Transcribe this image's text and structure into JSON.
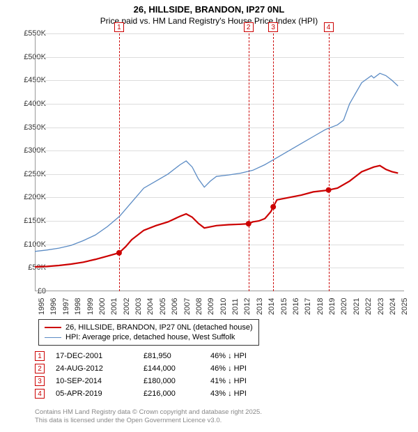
{
  "title": "26, HILLSIDE, BRANDON, IP27 0NL",
  "subtitle": "Price paid vs. HM Land Registry's House Price Index (HPI)",
  "chart": {
    "type": "line",
    "ylim": [
      0,
      550000
    ],
    "ytick_step": 50000,
    "yticks": [
      "£0",
      "£50K",
      "£100K",
      "£150K",
      "£200K",
      "£250K",
      "£300K",
      "£350K",
      "£400K",
      "£450K",
      "£500K",
      "£550K"
    ],
    "xlim": [
      1995,
      2025.5
    ],
    "xticks": [
      1995,
      1996,
      1997,
      1998,
      1999,
      2000,
      2001,
      2002,
      2003,
      2004,
      2005,
      2006,
      2007,
      2008,
      2009,
      2010,
      2011,
      2012,
      2013,
      2014,
      2015,
      2016,
      2017,
      2018,
      2019,
      2020,
      2021,
      2022,
      2023,
      2024,
      2025
    ],
    "grid_color": "#dddddd",
    "series": [
      {
        "name": "26, HILLSIDE, BRANDON, IP27 0NL (detached house)",
        "color": "#cc0000",
        "width": 2.2,
        "data": [
          [
            1995,
            52000
          ],
          [
            1996,
            53000
          ],
          [
            1997,
            55000
          ],
          [
            1998,
            58000
          ],
          [
            1999,
            62000
          ],
          [
            2000,
            68000
          ],
          [
            2001,
            75000
          ],
          [
            2001.96,
            81950
          ],
          [
            2002.5,
            95000
          ],
          [
            2003,
            110000
          ],
          [
            2004,
            130000
          ],
          [
            2005,
            140000
          ],
          [
            2006,
            148000
          ],
          [
            2007,
            160000
          ],
          [
            2007.5,
            165000
          ],
          [
            2008,
            158000
          ],
          [
            2008.5,
            145000
          ],
          [
            2009,
            135000
          ],
          [
            2010,
            140000
          ],
          [
            2011,
            142000
          ],
          [
            2012,
            143000
          ],
          [
            2012.65,
            144000
          ],
          [
            2013,
            148000
          ],
          [
            2013.5,
            150000
          ],
          [
            2014,
            155000
          ],
          [
            2014.5,
            170000
          ],
          [
            2014.69,
            180000
          ],
          [
            2015,
            195000
          ],
          [
            2016,
            200000
          ],
          [
            2017,
            205000
          ],
          [
            2018,
            212000
          ],
          [
            2019,
            215000
          ],
          [
            2019.26,
            216000
          ],
          [
            2020,
            220000
          ],
          [
            2021,
            235000
          ],
          [
            2022,
            255000
          ],
          [
            2023,
            265000
          ],
          [
            2023.5,
            268000
          ],
          [
            2024,
            260000
          ],
          [
            2024.5,
            255000
          ],
          [
            2025,
            252000
          ]
        ]
      },
      {
        "name": "HPI: Average price, detached house, West Suffolk",
        "color": "#5b8bc4",
        "width": 1.3,
        "data": [
          [
            1995,
            85000
          ],
          [
            1996,
            88000
          ],
          [
            1997,
            92000
          ],
          [
            1998,
            98000
          ],
          [
            1999,
            108000
          ],
          [
            2000,
            120000
          ],
          [
            2001,
            138000
          ],
          [
            2002,
            160000
          ],
          [
            2003,
            190000
          ],
          [
            2004,
            220000
          ],
          [
            2005,
            235000
          ],
          [
            2006,
            250000
          ],
          [
            2007,
            270000
          ],
          [
            2007.5,
            278000
          ],
          [
            2008,
            265000
          ],
          [
            2008.5,
            240000
          ],
          [
            2009,
            222000
          ],
          [
            2009.5,
            235000
          ],
          [
            2010,
            245000
          ],
          [
            2011,
            248000
          ],
          [
            2012,
            252000
          ],
          [
            2013,
            258000
          ],
          [
            2014,
            270000
          ],
          [
            2015,
            285000
          ],
          [
            2016,
            300000
          ],
          [
            2017,
            315000
          ],
          [
            2018,
            330000
          ],
          [
            2019,
            345000
          ],
          [
            2020,
            355000
          ],
          [
            2020.5,
            365000
          ],
          [
            2021,
            400000
          ],
          [
            2022,
            445000
          ],
          [
            2022.8,
            460000
          ],
          [
            2023,
            455000
          ],
          [
            2023.5,
            465000
          ],
          [
            2024,
            460000
          ],
          [
            2024.5,
            450000
          ],
          [
            2025,
            438000
          ]
        ]
      }
    ],
    "markers": [
      {
        "n": "1",
        "x": 2001.96,
        "y": 81950,
        "color": "#cc0000"
      },
      {
        "n": "2",
        "x": 2012.65,
        "y": 144000,
        "color": "#cc0000"
      },
      {
        "n": "3",
        "x": 2014.69,
        "y": 180000,
        "color": "#cc0000"
      },
      {
        "n": "4",
        "x": 2019.26,
        "y": 216000,
        "color": "#cc0000"
      }
    ]
  },
  "legend": [
    {
      "label": "26, HILLSIDE, BRANDON, IP27 0NL (detached house)",
      "color": "#cc0000",
      "width": 2.2
    },
    {
      "label": "HPI: Average price, detached house, West Suffolk",
      "color": "#5b8bc4",
      "width": 1.3
    }
  ],
  "table": [
    {
      "n": "1",
      "date": "17-DEC-2001",
      "price": "£81,950",
      "diff": "46% ↓ HPI",
      "color": "#cc0000"
    },
    {
      "n": "2",
      "date": "24-AUG-2012",
      "price": "£144,000",
      "diff": "46% ↓ HPI",
      "color": "#cc0000"
    },
    {
      "n": "3",
      "date": "10-SEP-2014",
      "price": "£180,000",
      "diff": "41% ↓ HPI",
      "color": "#cc0000"
    },
    {
      "n": "4",
      "date": "05-APR-2019",
      "price": "£216,000",
      "diff": "43% ↓ HPI",
      "color": "#cc0000"
    }
  ],
  "footer1": "Contains HM Land Registry data © Crown copyright and database right 2025.",
  "footer2": "This data is licensed under the Open Government Licence v3.0."
}
